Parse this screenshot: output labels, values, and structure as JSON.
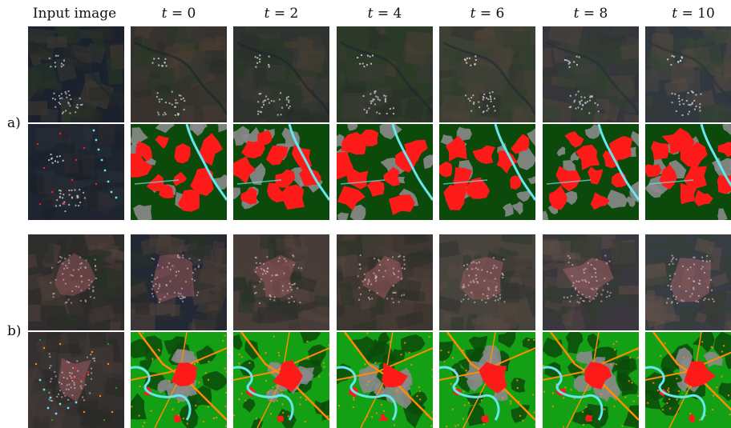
{
  "header": {
    "input_label": "Input image",
    "time_var": "t",
    "time_steps": [
      "= 0",
      "= 2",
      "= 4",
      "= 6",
      "= 8",
      "= 10"
    ]
  },
  "rows": [
    {
      "label": "a)"
    },
    {
      "label": "b)"
    }
  ],
  "colors": {
    "urban_red": "#ff1a1a",
    "forest_dark_green": "#0c4a0c",
    "grass_green": "#14a014",
    "water_cyan": "#66e6ee",
    "road_orange": "#ff8c00",
    "bare_gray": "#8a8a8a"
  }
}
